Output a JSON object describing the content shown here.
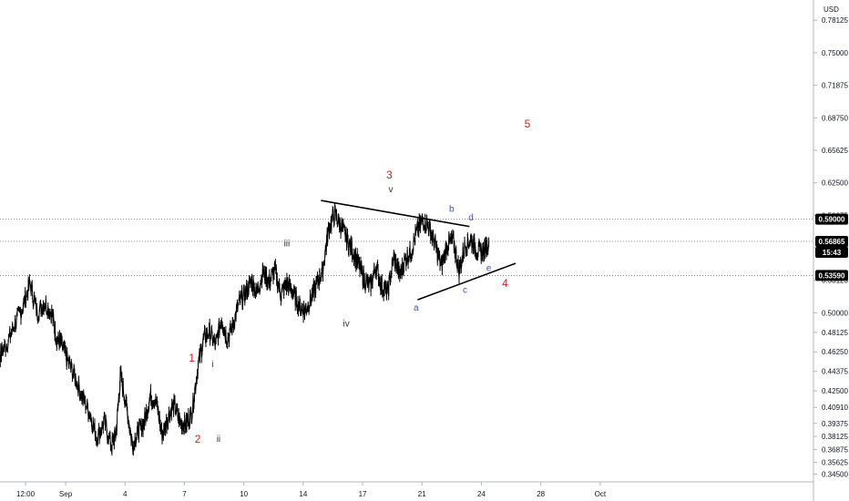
{
  "currency": "USD",
  "chart_data": {
    "type": "line",
    "xlabel": "",
    "ylabel": "",
    "ylim": [
      0.3375,
      0.8007
    ],
    "x_range": [
      0,
      44
    ],
    "y_ticks": [
      "0.78125",
      "0.75000",
      "0.71875",
      "0.68750",
      "0.65625",
      "0.62500",
      "0.59375",
      "0.56250",
      "0.53125",
      "0.50000",
      "0.48125",
      "0.46250",
      "0.44375",
      "0.42500",
      "0.40910",
      "0.39375",
      "0.38125",
      "0.36875",
      "0.35625",
      "0.34500"
    ],
    "y_tick_values": [
      0.78125,
      0.75,
      0.71875,
      0.6875,
      0.65625,
      0.625,
      0.59375,
      0.5625,
      0.53125,
      0.5,
      0.48125,
      0.4625,
      0.44375,
      0.425,
      0.4091,
      0.39375,
      0.38125,
      0.36875,
      0.35625,
      0.345
    ],
    "x_ticks": [
      {
        "label": "12:00",
        "x": 0.2
      },
      {
        "label": "Sep",
        "x": 2.9
      },
      {
        "label": "4",
        "x": 6.9
      },
      {
        "label": "7",
        "x": 10.9
      },
      {
        "label": "10",
        "x": 14.9
      },
      {
        "label": "14",
        "x": 18.9
      },
      {
        "label": "17",
        "x": 22.9
      },
      {
        "label": "21",
        "x": 26.9
      },
      {
        "label": "24",
        "x": 30.9
      },
      {
        "label": "28",
        "x": 34.9
      },
      {
        "label": "Oct",
        "x": 38.9
      }
    ],
    "series": [
      {
        "color": "#000000",
        "x": [
          -2.5,
          -2.0,
          -1.8,
          -1.5,
          -1.0,
          -0.5,
          0.0,
          0.5,
          1.0,
          1.5,
          2.0,
          2.3,
          2.6,
          3.0,
          3.5,
          4.0,
          4.5,
          5.0,
          5.5,
          6.0,
          6.3,
          6.6,
          7.0,
          7.4,
          7.8,
          8.2,
          8.6,
          9.0,
          9.4,
          9.8,
          10.2,
          10.6,
          11.0,
          11.4,
          11.8,
          12.2,
          12.6,
          13.0,
          13.4,
          13.8,
          14.2,
          14.6,
          15.0,
          15.4,
          15.8,
          16.2,
          16.6,
          17.0,
          17.4,
          17.8,
          18.2,
          18.6,
          19.0,
          19.4,
          19.8,
          20.2,
          20.6,
          21.0,
          21.4,
          21.8,
          22.2,
          22.6,
          23.0,
          23.4,
          23.8,
          24.2,
          24.6,
          25.0,
          25.4,
          25.8,
          26.2,
          26.6,
          27.0,
          27.4,
          27.8,
          28.2,
          28.6,
          29.0,
          29.4,
          29.8,
          30.2,
          30.6,
          31.0,
          31.4
        ],
        "values": [
          0.478,
          0.475,
          0.445,
          0.46,
          0.472,
          0.49,
          0.505,
          0.528,
          0.5,
          0.51,
          0.498,
          0.475,
          0.47,
          0.455,
          0.44,
          0.42,
          0.405,
          0.38,
          0.395,
          0.372,
          0.385,
          0.44,
          0.41,
          0.373,
          0.386,
          0.395,
          0.42,
          0.415,
          0.382,
          0.4,
          0.412,
          0.395,
          0.393,
          0.404,
          0.448,
          0.475,
          0.482,
          0.468,
          0.495,
          0.474,
          0.49,
          0.51,
          0.518,
          0.53,
          0.52,
          0.54,
          0.529,
          0.541,
          0.518,
          0.528,
          0.52,
          0.508,
          0.502,
          0.512,
          0.528,
          0.54,
          0.58,
          0.595,
          0.585,
          0.572,
          0.56,
          0.548,
          0.532,
          0.525,
          0.545,
          0.525,
          0.52,
          0.553,
          0.536,
          0.552,
          0.56,
          0.58,
          0.589,
          0.582,
          0.565,
          0.545,
          0.565,
          0.57,
          0.54,
          0.565,
          0.57,
          0.56,
          0.558,
          0.568
        ]
      }
    ],
    "lines": [
      {
        "name": "triangle-upper",
        "x1": 20.1,
        "y1": 0.608,
        "x2": 30.1,
        "y2": 0.583
      },
      {
        "name": "triangle-lower",
        "x1": 26.6,
        "y1": 0.5125,
        "x2": 33.2,
        "y2": 0.5475
      }
    ],
    "levels": [
      {
        "value": 0.59,
        "label": "0.59000",
        "style": "dotted"
      },
      {
        "value": 0.56865,
        "label": "0.56865",
        "style": "dotted",
        "countdown": "15:43"
      },
      {
        "value": 0.5359,
        "label": "0.53590",
        "style": "dotted"
      }
    ],
    "annotations": [
      {
        "text": "1",
        "x": 11.4,
        "y": 0.453,
        "color": "red"
      },
      {
        "text": "2",
        "x": 11.8,
        "y": 0.375,
        "color": "red"
      },
      {
        "text": "i",
        "x": 12.8,
        "y": 0.448,
        "color": "black"
      },
      {
        "text": "ii",
        "x": 13.2,
        "y": 0.376,
        "color": "black"
      },
      {
        "text": "iii",
        "x": 17.8,
        "y": 0.564,
        "color": "black"
      },
      {
        "text": "iv",
        "x": 21.8,
        "y": 0.487,
        "color": "black"
      },
      {
        "text": "3",
        "x": 24.7,
        "y": 0.629,
        "color": "red"
      },
      {
        "text": "v",
        "x": 24.8,
        "y": 0.616,
        "color": "black"
      },
      {
        "text": "a",
        "x": 26.5,
        "y": 0.502,
        "color": "blue"
      },
      {
        "text": "b",
        "x": 28.9,
        "y": 0.597,
        "color": "blue"
      },
      {
        "text": "c",
        "x": 29.8,
        "y": 0.519,
        "color": "blue"
      },
      {
        "text": "d",
        "x": 30.2,
        "y": 0.589,
        "color": "blue"
      },
      {
        "text": "e",
        "x": 31.4,
        "y": 0.54,
        "color": "blue"
      },
      {
        "text": "4",
        "x": 32.5,
        "y": 0.525,
        "color": "red"
      },
      {
        "text": "5",
        "x": 34.0,
        "y": 0.678,
        "color": "red"
      }
    ]
  },
  "colors": {
    "axis_text": "#131722",
    "wave_red": "#e8150f",
    "wave_blue": "#3f4fc9",
    "wave_black": "#333333",
    "badge_bg": "#000000",
    "badge_text": "#ffffff",
    "grid_dotted": "#7a7a7a"
  }
}
